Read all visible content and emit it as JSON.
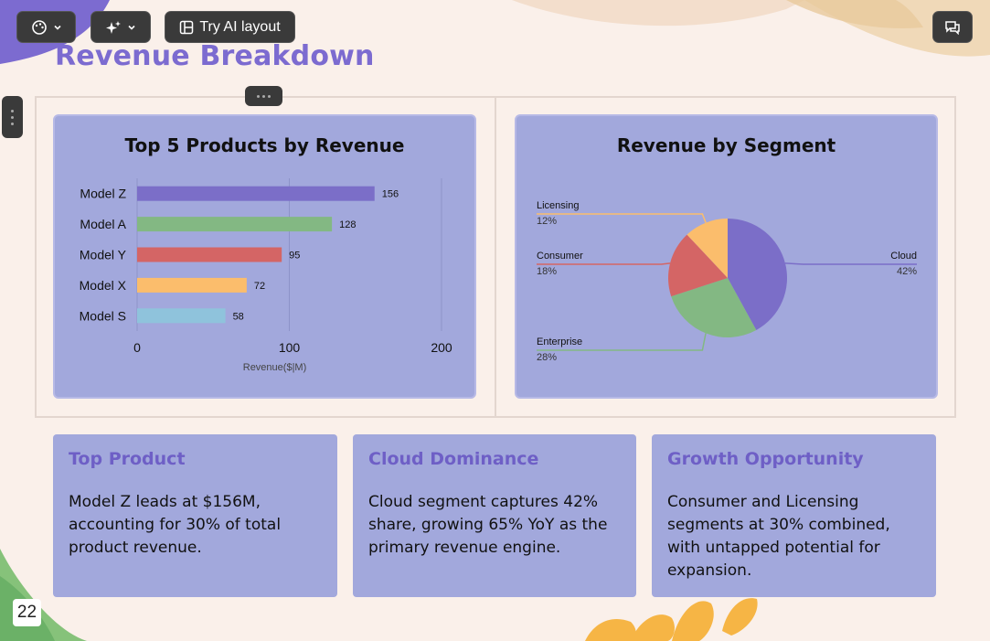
{
  "toolbar": {
    "theme_icon": "palette-icon",
    "ai_icon": "sparkles-icon",
    "layout_label": "Try AI layout",
    "comment_icon": "comment-icon"
  },
  "slide": {
    "title": "Revenue Breakdown",
    "page_number": "22"
  },
  "colors": {
    "accent": "#7c6bd0",
    "card_bg": "#a2a8dc",
    "bar_purple": "#7b6ec8",
    "bar_green": "#83b883",
    "bar_red": "#d46565",
    "bar_orange": "#fbbd6c",
    "bar_blue": "#8fc3dc"
  },
  "bar_chart": {
    "title": "Top 5 Products by Revenue",
    "xlabel": "Revenue($|M)",
    "ticks": [
      "0",
      "100",
      "200"
    ]
  },
  "pie_chart": {
    "title": "Revenue by Segment"
  },
  "chart_data": [
    {
      "type": "bar",
      "orientation": "horizontal",
      "title": "Top 5 Products by Revenue",
      "categories": [
        "Model Z",
        "Model A",
        "Model Y",
        "Model X",
        "Model S"
      ],
      "values": [
        156,
        128,
        95,
        72,
        58
      ],
      "colors": [
        "#7b6ec8",
        "#83b883",
        "#d46565",
        "#fbbd6c",
        "#8fc3dc"
      ],
      "xlabel": "Revenue($|M)",
      "xlim": [
        0,
        200
      ],
      "xticks": [
        0,
        100,
        200
      ],
      "grid": true
    },
    {
      "type": "pie",
      "title": "Revenue by Segment",
      "labels": [
        "Cloud",
        "Enterprise",
        "Consumer",
        "Licensing"
      ],
      "values": [
        42,
        28,
        18,
        12
      ],
      "value_labels": [
        "42%",
        "28%",
        "18%",
        "12%"
      ],
      "colors": [
        "#7b6ec8",
        "#83b883",
        "#d46565",
        "#fbbd6c"
      ]
    }
  ],
  "insights": [
    {
      "title": "Top Product",
      "body": "Model Z leads at $156M, accounting for 30% of total product revenue."
    },
    {
      "title": "Cloud Dominance",
      "body": "Cloud segment captures 42% share, growing 65% YoY as the primary revenue engine."
    },
    {
      "title": "Growth Opportunity",
      "body": "Consumer and Licensing segments at 30% combined, with untapped potential for expansion."
    }
  ]
}
